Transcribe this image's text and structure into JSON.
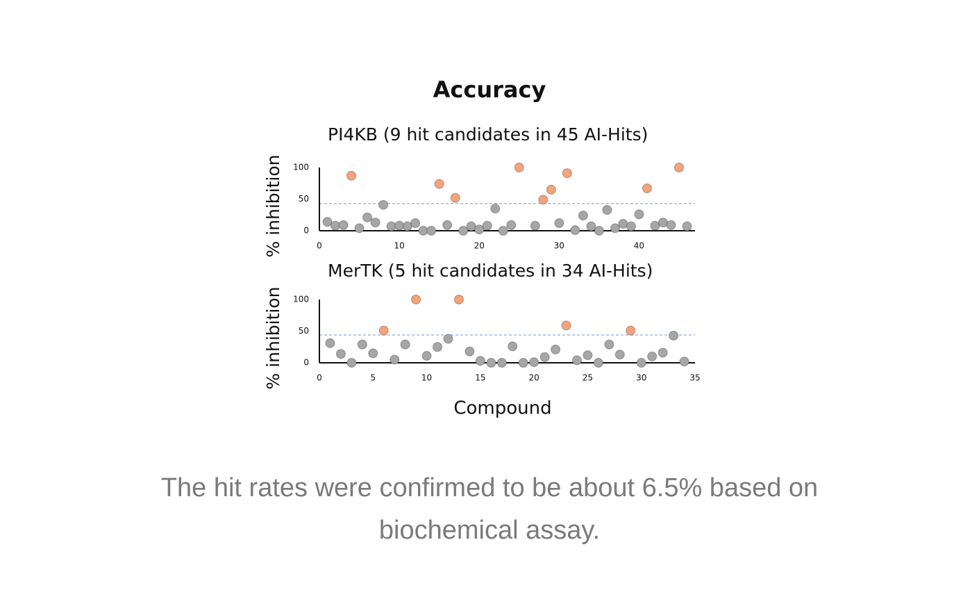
{
  "title": "Accuracy",
  "caption": "The hit rates were confirmed to be about 6.5% based on biochemical assay.",
  "chart_data": [
    {
      "type": "scatter",
      "title": "PI4KB (9 hit candidates in 45 AI-Hits)",
      "ylabel": "% inhibition",
      "xlim": [
        0,
        47
      ],
      "xticks": [
        0,
        10,
        20,
        30,
        40
      ],
      "ylim": [
        0,
        100
      ],
      "yticks": [
        0,
        50,
        100
      ],
      "threshold": 43,
      "threshold_color": "#9db8e8",
      "series": [
        {
          "color": "#a6a6a6",
          "x": [
            1,
            2,
            3,
            5,
            6,
            7,
            8,
            9,
            10,
            11,
            12,
            13,
            14,
            16,
            18,
            19,
            20,
            21,
            22,
            23,
            24,
            27,
            30,
            32,
            33,
            34,
            35,
            36,
            37,
            38,
            39,
            40,
            42,
            43,
            44,
            46
          ],
          "values": [
            14,
            8,
            9,
            4,
            21,
            13,
            41,
            7,
            8,
            7,
            12,
            0,
            0,
            9,
            0,
            7,
            2,
            8,
            35,
            0,
            9,
            8,
            12,
            1,
            24,
            7,
            0,
            33,
            4,
            11,
            7,
            26,
            8,
            13,
            9,
            7
          ]
        },
        {
          "color": "#f4a37a",
          "x": [
            4,
            15,
            17,
            25,
            28,
            29,
            31,
            41,
            45
          ],
          "values": [
            87,
            74,
            52,
            100,
            49,
            65,
            91,
            67,
            100
          ]
        }
      ]
    },
    {
      "type": "scatter",
      "title": "MerTK (5 hit candidates in 34 AI-Hits)",
      "ylabel": "% inhibition",
      "xlabel": "Compound",
      "xlim": [
        0,
        35
      ],
      "xticks": [
        0,
        5,
        10,
        15,
        20,
        25,
        30,
        35
      ],
      "ylim": [
        0,
        100
      ],
      "yticks": [
        0,
        50,
        100
      ],
      "threshold": 44,
      "threshold_color": "#9db8e8",
      "series": [
        {
          "color": "#a6a6a6",
          "x": [
            1,
            2,
            3,
            4,
            5,
            7,
            8,
            10,
            11,
            12,
            14,
            15,
            16,
            17,
            18,
            19,
            20,
            21,
            22,
            24,
            25,
            26,
            27,
            28,
            30,
            31,
            32,
            33,
            34
          ],
          "values": [
            31,
            14,
            0,
            29,
            15,
            5,
            29,
            11,
            25,
            38,
            18,
            3,
            0,
            0,
            26,
            0,
            1,
            9,
            21,
            4,
            12,
            0,
            29,
            13,
            0,
            10,
            16,
            43,
            2
          ]
        },
        {
          "color": "#f4a37a",
          "x": [
            6,
            9,
            13,
            23,
            29
          ],
          "values": [
            51,
            100,
            100,
            59,
            51
          ]
        }
      ]
    }
  ]
}
